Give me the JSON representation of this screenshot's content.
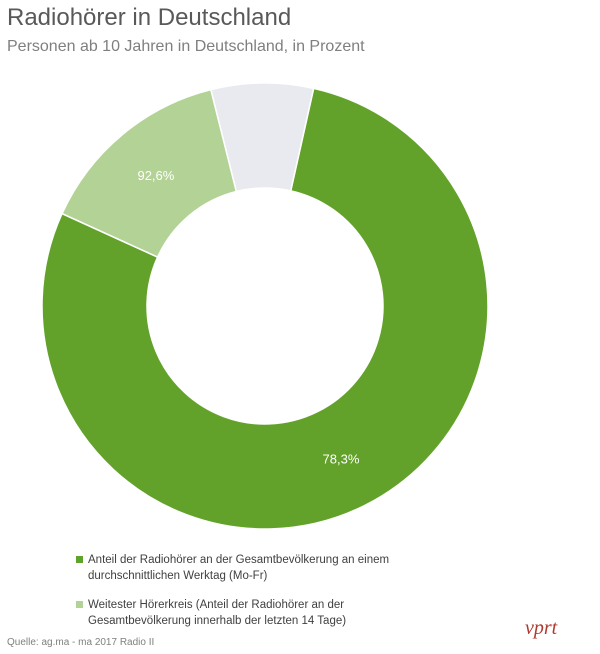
{
  "title": "Radiohörer in Deutschland",
  "subtitle": "Personen ab 10 Jahren in Deutschland, in Prozent",
  "source": "Quelle: ag.ma - ma 2017 Radio II",
  "logo_text": "vprt",
  "colors": {
    "dark_green": "#63a22a",
    "light_green": "#b3d396",
    "grey": "#e9eaef",
    "label_text": "#ffffff"
  },
  "chart_data": {
    "type": "donut",
    "title": "Radiohörer in Deutschland",
    "subtitle": "Personen ab 10 Jahren in Deutschland, in Prozent",
    "segments": [
      {
        "name": "Anteil der Radiohörer an der Gesamtbevölkerung an einem durchschnittlichen Werktag (Mo-Fr)",
        "value": 78.3,
        "label": "78,3%",
        "color": "#63a22a"
      },
      {
        "name": "Weitester Hörerkreis (Anteil der Radiohörer an der Gesamtbevölkerung innerhalb der letzten 14 Tage)",
        "value": 14.3,
        "label": "92,6%",
        "color": "#b3d396"
      },
      {
        "name": "",
        "value": 7.4,
        "label": "",
        "color": "#e9eaef"
      }
    ],
    "legend_position": "bottom"
  },
  "legend": [
    {
      "text": "Anteil der Radiohörer an der Gesamtbevölkerung an einem durchschnittlichen Werktag (Mo-Fr)",
      "color": "#63a22a"
    },
    {
      "text": "Weitester Hörerkreis (Anteil der Radiohörer an der Gesamtbevölkerung innerhalb der letzten 14 Tage)",
      "color": "#b3d396"
    }
  ]
}
